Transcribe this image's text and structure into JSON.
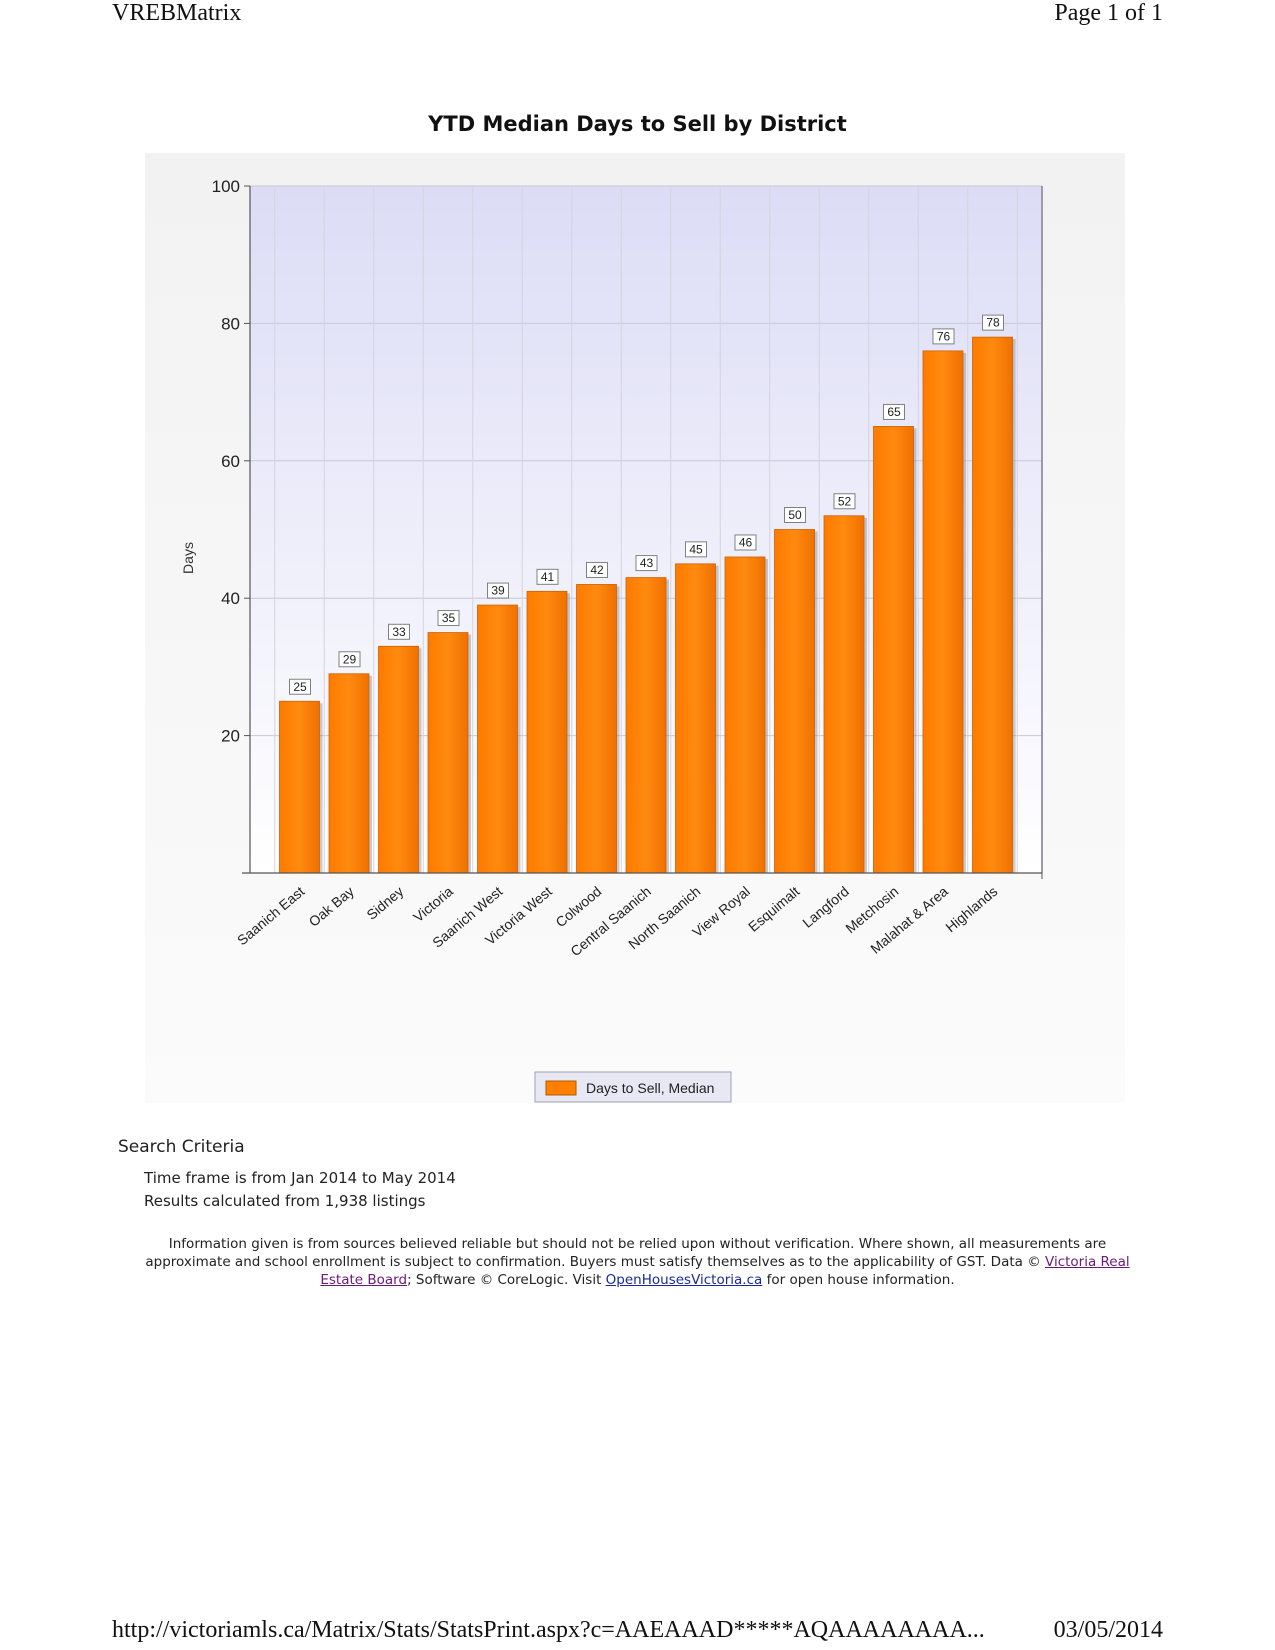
{
  "header": {
    "app_name": "VREBMatrix",
    "page_info": "Page 1 of 1"
  },
  "chart_data": {
    "type": "bar",
    "title": "YTD Median Days to Sell by District",
    "xlabel": "",
    "ylabel": "Days",
    "ylim": [
      0,
      100
    ],
    "yticks": [
      20,
      40,
      60,
      80,
      100
    ],
    "grid": true,
    "legend_position": "bottom-center",
    "categories": [
      "Saanich East",
      "Oak Bay",
      "Sidney",
      "Victoria",
      "Saanich West",
      "Victoria West",
      "Colwood",
      "Central Saanich",
      "North Saanich",
      "View Royal",
      "Esquimalt",
      "Langford",
      "Metchosin",
      "Malahat & Area",
      "Highlands"
    ],
    "series": [
      {
        "name": "Days to Sell, Median",
        "color": "#ff8000",
        "values": [
          25,
          29,
          33,
          35,
          39,
          41,
          42,
          43,
          45,
          46,
          50,
          52,
          65,
          76,
          78
        ]
      }
    ]
  },
  "criteria": {
    "heading": "Search Criteria",
    "time_frame": "Time frame is from Jan 2014 to May 2014",
    "results": "Results calculated from 1,938 listings"
  },
  "disclaimer": {
    "text_1": "Information given is from sources believed reliable but should not be relied upon without verification. Where shown, all measurements are approximate and school enrollment is subject to confirmation. Buyers must satisfy themselves as to the applicability of GST. Data © ",
    "link_1": "Victoria Real Estate Board",
    "text_2": "; Software © CoreLogic. Visit ",
    "link_2": "OpenHousesVictoria.ca",
    "text_3": " for open house information."
  },
  "footer": {
    "url": "http://victoriamls.ca/Matrix/Stats/StatsPrint.aspx?c=AAEAAAD*****AQAAAAAAAA...",
    "date": "03/05/2014"
  }
}
